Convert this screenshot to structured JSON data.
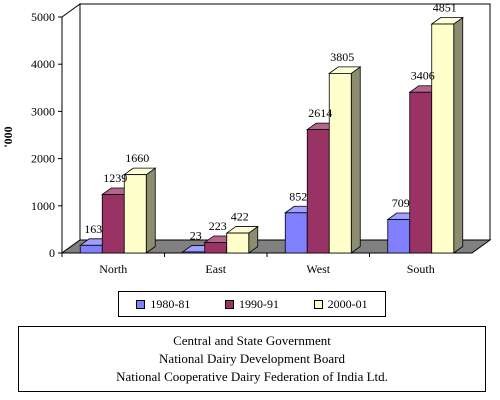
{
  "chart_data": {
    "type": "bar",
    "title": "",
    "xlabel": "",
    "ylabel": "'000",
    "ylim": [
      0,
      5000
    ],
    "yticks": [
      0,
      1000,
      2000,
      3000,
      4000,
      5000
    ],
    "grid": false,
    "categories": [
      "North",
      "East",
      "West",
      "South"
    ],
    "series": [
      {
        "name": "1980-81",
        "values": [
          163,
          23,
          852,
          709
        ],
        "color": "#8080FF"
      },
      {
        "name": "1990-91",
        "values": [
          1239,
          223,
          2614,
          3406
        ],
        "color": "#993366"
      },
      {
        "name": "2000-01",
        "values": [
          1660,
          422,
          3805,
          4851
        ],
        "color": "#FFFFCC"
      }
    ],
    "legend_position": "bottom"
  },
  "source": {
    "lines": [
      "Central and State Government",
      "National Dairy Development Board",
      "National Cooperative Dairy Federation of India Ltd."
    ]
  }
}
